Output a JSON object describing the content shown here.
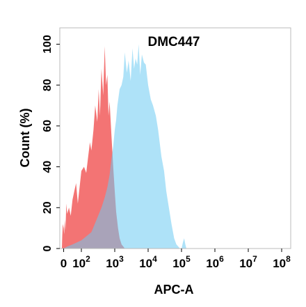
{
  "chart_data": {
    "type": "area",
    "title": "DMC447",
    "xlabel": "APC-A",
    "ylabel": "Count  (%)",
    "x_scale": "biexponential",
    "xlim": [
      -10,
      100000000
    ],
    "ylim": [
      0,
      108
    ],
    "grid": false,
    "legend": "none",
    "x_ticks": [
      {
        "value": 0,
        "base": "0",
        "exp": ""
      },
      {
        "value": 100,
        "base": "10",
        "exp": "2"
      },
      {
        "value": 1000,
        "base": "10",
        "exp": "3"
      },
      {
        "value": 10000,
        "base": "10",
        "exp": "4"
      },
      {
        "value": 100000,
        "base": "10",
        "exp": "5"
      },
      {
        "value": 1000000,
        "base": "10",
        "exp": "6"
      },
      {
        "value": 10000000,
        "base": "10",
        "exp": "7"
      },
      {
        "value": 100000000,
        "base": "10",
        "exp": "8"
      }
    ],
    "y_ticks": [
      0,
      20,
      40,
      60,
      80,
      100
    ],
    "series": [
      {
        "color": "#f26d6d",
        "x": [
          -10,
          -8,
          -5,
          0,
          3,
          6,
          10,
          15,
          20,
          30,
          40,
          50,
          60,
          70,
          80,
          100,
          120,
          140,
          160,
          180,
          200,
          230,
          260,
          300,
          330,
          360,
          400,
          450,
          500,
          550,
          600,
          650,
          700,
          800,
          900,
          1000,
          1100,
          1250,
          1400,
          1600,
          1800,
          2000
        ],
        "y": [
          0,
          6,
          12,
          10,
          7,
          14,
          9,
          22,
          17,
          20,
          16,
          24,
          28,
          32,
          22,
          38,
          40,
          37,
          45,
          52,
          48,
          58,
          70,
          62,
          78,
          65,
          88,
          75,
          99,
          80,
          85,
          65,
          72,
          55,
          40,
          28,
          18,
          10,
          5,
          2,
          1,
          0
        ]
      },
      {
        "color": "#6ccbf2",
        "x": [
          -10,
          0,
          20,
          50,
          100,
          200,
          300,
          400,
          500,
          600,
          700,
          800,
          900,
          1000,
          1100,
          1200,
          1400,
          1600,
          1800,
          2000,
          2300,
          2600,
          3000,
          3400,
          3800,
          4200,
          4700,
          5200,
          5800,
          6500,
          7500,
          8500,
          10000,
          12000,
          14000,
          17000,
          20000,
          25000,
          30000,
          35000,
          40000,
          50000,
          60000,
          70000,
          80000,
          90000,
          100000,
          110000,
          120000,
          130000,
          140000,
          150000
        ],
        "y": [
          0,
          0,
          1,
          2,
          4,
          8,
          15,
          20,
          25,
          30,
          36,
          44,
          50,
          58,
          63,
          70,
          78,
          80,
          84,
          96,
          86,
          92,
          82,
          98,
          88,
          93,
          90,
          100,
          85,
          95,
          91,
          90,
          80,
          73,
          70,
          65,
          58,
          45,
          38,
          28,
          22,
          12,
          5,
          2,
          1,
          0,
          0,
          3,
          5,
          2,
          0,
          0
        ]
      }
    ]
  }
}
